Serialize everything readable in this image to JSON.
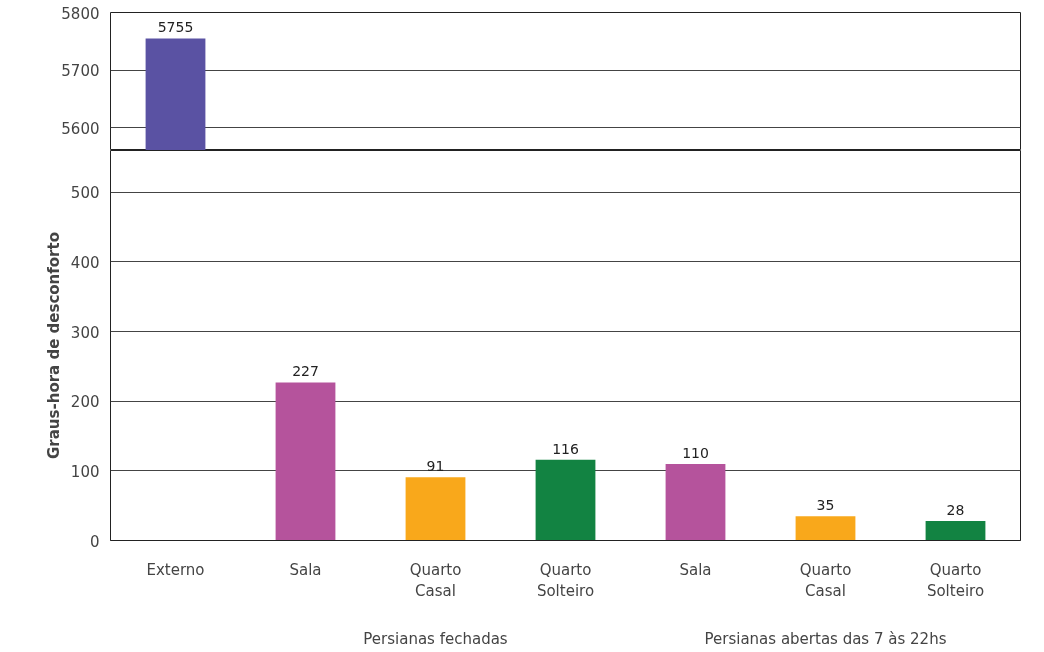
{
  "chart_data": [
    {
      "type": "bar",
      "values": [
        5755,
        null,
        null,
        null,
        null,
        null,
        null
      ],
      "colors": [
        "#5a52a3",
        "#b5539c",
        "#f9a81b",
        "#128342",
        "#b5539c",
        "#f9a81b",
        "#128342"
      ],
      "ylim": [
        5560,
        5800
      ],
      "yticks": [
        5600,
        5700,
        5800
      ],
      "grid": "y",
      "data_labels": true,
      "tick_labels": "y"
    },
    {
      "type": "bar",
      "categories": [
        "Externo",
        "Sala",
        "Quarto Casal",
        "Quarto Solteiro",
        "Sala",
        "Quarto Casal",
        "Quarto Solteiro"
      ],
      "values": [
        null,
        227,
        91,
        116,
        110,
        35,
        28
      ],
      "colors": [
        "#5a52a3",
        "#b5539c",
        "#f9a81b",
        "#128342",
        "#b5539c",
        "#f9a81b",
        "#128342"
      ],
      "ylim": [
        0,
        560
      ],
      "yticks": [
        0,
        100,
        200,
        300,
        400,
        500
      ],
      "grid": "y",
      "data_labels": true,
      "ylabel": "Graus-hora de desconforto",
      "annotations": [
        "Persianas fechadas",
        "Persianas abertas das 7 às 22hs"
      ]
    }
  ]
}
